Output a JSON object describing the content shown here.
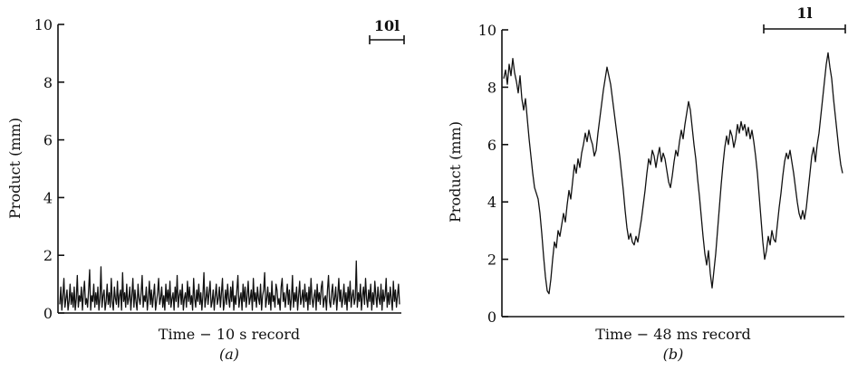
{
  "chart_data": [
    {
      "type": "line",
      "panel_label": "(a)",
      "xlabel": "Time − 10 s record",
      "ylabel": "Product (mm)",
      "ylim": [
        0,
        10
      ],
      "yticks": [
        0,
        2,
        4,
        6,
        8,
        10
      ],
      "x_ticks_shown": false,
      "grid": false,
      "scale_bar_label": "10l",
      "series": [
        {
          "values": [
            0.3,
            0.9,
            0.1,
            0.6,
            1.2,
            0.2,
            0.5,
            0.8,
            0.1,
            0.4,
            1.0,
            0.3,
            0.7,
            0.2,
            0.9,
            0.1,
            0.5,
            1.3,
            0.2,
            0.6,
            0.4,
            0.9,
            0.1,
            0.7,
            1.1,
            0.3,
            0.5,
            0.2,
            0.8,
            1.5,
            0.1,
            0.6,
            0.4,
            1.0,
            0.2,
            0.7,
            0.3,
            0.9,
            0.1,
            0.5,
            1.6,
            0.2,
            0.6,
            0.8,
            0.1,
            0.4,
            1.0,
            0.3,
            0.7,
            0.2,
            1.2,
            0.4,
            0.1,
            0.9,
            0.5,
            0.3,
            1.1,
            0.2,
            0.6,
            0.8,
            0.1,
            1.4,
            0.4,
            0.7,
            0.2,
            1.0,
            0.3,
            0.5,
            0.9,
            0.1,
            0.6,
            1.2,
            0.2,
            0.8,
            0.4,
            0.1,
            1.0,
            0.5,
            0.3,
            0.7,
            1.3,
            0.2,
            0.6,
            0.4,
            0.9,
            0.1,
            0.5,
            1.1,
            0.3,
            0.8,
            0.2,
            0.6,
            1.0,
            0.1,
            0.4,
            0.7,
            1.2,
            0.3,
            0.5,
            0.9,
            0.2,
            0.6,
            0.1,
            1.0,
            0.4,
            0.8,
            0.3,
            1.1,
            0.2,
            0.5,
            0.7,
            0.1,
            0.9,
            0.4,
            1.3,
            0.2,
            0.6,
            0.8,
            0.3,
            1.0,
            0.1,
            0.5,
            0.7,
            0.2,
            1.1,
            0.4,
            0.9,
            0.3,
            0.6,
            0.1,
            1.2,
            0.5,
            0.2,
            0.8,
            0.4,
            1.0,
            0.3,
            0.7,
            0.1,
            0.6,
            1.4,
            0.2,
            0.5,
            0.9,
            0.3,
            0.7,
            1.1,
            0.2,
            0.4,
            0.8,
            0.1,
            0.6,
            1.0,
            0.3,
            0.5,
            0.9,
            0.2,
            0.7,
            1.2,
            0.1,
            0.4,
            0.8,
            0.3,
            1.0,
            0.5,
            0.2,
            0.9,
            0.4,
            1.1,
            0.1,
            0.6,
            0.3,
            0.8,
            1.3,
            0.2,
            0.5,
            0.7,
            0.1,
            1.0,
            0.4,
            0.9,
            0.2,
            0.6,
            1.1,
            0.3,
            0.5,
            0.8,
            0.1,
            1.2,
            0.4,
            0.7,
            0.2,
            0.9,
            0.5,
            0.3,
            1.0,
            0.1,
            0.6,
            0.8,
            1.4,
            0.2,
            0.5,
            0.9,
            0.3,
            0.7,
            0.1,
            1.1,
            0.4,
            0.6,
            0.2,
            1.0,
            0.8,
            0.3,
            0.5,
            0.1,
            0.9,
            1.2,
            0.4,
            0.7,
            0.2,
            0.6,
            1.0,
            0.3,
            0.8,
            0.1,
            0.5,
            1.3,
            0.2,
            0.7,
            0.4,
            0.9,
            0.1,
            0.6,
            1.1,
            0.3,
            0.5,
            0.8,
            0.2,
            1.0,
            0.4,
            0.7,
            0.1,
            0.9,
            0.3,
            1.2,
            0.5,
            0.2,
            0.6,
            0.8,
            0.1,
            1.0,
            0.4,
            0.7,
            0.3,
            0.9,
            1.1,
            0.2,
            0.5,
            0.6,
            0.1,
            0.8,
            1.3,
            0.4,
            0.2,
            0.7,
            1.0,
            0.3,
            0.5,
            0.9,
            0.1,
            0.6,
            1.2,
            0.4,
            0.8,
            0.2,
            0.5,
            1.0,
            0.3,
            0.7,
            0.1,
            0.9,
            0.4,
            1.1,
            0.2,
            0.6,
            0.8,
            0.3,
            0.5,
            1.8,
            0.2,
            0.7,
            0.4,
            1.0,
            0.1,
            0.6,
            0.9,
            0.3,
            1.2,
            0.5,
            0.2,
            0.8,
            0.4,
            1.0,
            0.1,
            0.7,
            0.3,
            1.1,
            0.6,
            0.2,
            0.9,
            0.5,
            0.3,
            1.0,
            0.1,
            0.8,
            0.4,
            0.6,
            1.2,
            0.2,
            0.7,
            0.3,
            0.9,
            0.5,
            0.1,
            1.1,
            0.4,
            0.8,
            0.2,
            0.6,
            1.0,
            0.3
          ]
        }
      ]
    },
    {
      "type": "line",
      "panel_label": "(b)",
      "xlabel": "Time − 48 ms record",
      "ylabel": "Product (mm)",
      "ylim": [
        0,
        10
      ],
      "yticks": [
        0,
        2,
        4,
        6,
        8,
        10
      ],
      "x_ticks_shown": false,
      "grid": false,
      "scale_bar_label": "1l",
      "series": [
        {
          "values": [
            8.3,
            8.6,
            8.1,
            8.8,
            8.4,
            9.0,
            8.5,
            8.2,
            7.8,
            8.4,
            7.6,
            7.2,
            7.6,
            6.9,
            6.2,
            5.6,
            5.0,
            4.5,
            4.3,
            4.1,
            3.6,
            2.9,
            2.1,
            1.4,
            0.9,
            0.8,
            1.3,
            2.0,
            2.6,
            2.4,
            3.0,
            2.8,
            3.2,
            3.6,
            3.3,
            3.9,
            4.4,
            4.1,
            4.7,
            5.3,
            5.0,
            5.5,
            5.2,
            5.7,
            6.0,
            6.4,
            6.1,
            6.5,
            6.2,
            6.0,
            5.6,
            5.8,
            6.4,
            6.9,
            7.4,
            7.9,
            8.3,
            8.7,
            8.4,
            8.1,
            7.6,
            7.1,
            6.6,
            6.1,
            5.6,
            5.0,
            4.4,
            3.7,
            3.1,
            2.7,
            2.9,
            2.6,
            2.5,
            2.8,
            2.6,
            3.0,
            3.4,
            3.9,
            4.4,
            5.0,
            5.5,
            5.3,
            5.8,
            5.6,
            5.2,
            5.6,
            5.9,
            5.4,
            5.7,
            5.5,
            5.1,
            4.7,
            4.5,
            4.9,
            5.4,
            5.8,
            5.6,
            6.1,
            6.5,
            6.2,
            6.7,
            7.1,
            7.5,
            7.2,
            6.6,
            6.0,
            5.5,
            4.8,
            4.2,
            3.5,
            2.8,
            2.2,
            1.8,
            2.3,
            1.5,
            1.0,
            1.6,
            2.2,
            3.0,
            3.8,
            4.6,
            5.3,
            5.9,
            6.3,
            6.0,
            6.5,
            6.3,
            5.9,
            6.2,
            6.7,
            6.4,
            6.8,
            6.5,
            6.7,
            6.3,
            6.6,
            6.2,
            6.5,
            6.1,
            5.6,
            5.0,
            4.2,
            3.4,
            2.6,
            2.0,
            2.3,
            2.8,
            2.5,
            3.0,
            2.7,
            2.6,
            3.2,
            3.8,
            4.3,
            4.9,
            5.4,
            5.7,
            5.5,
            5.8,
            5.4,
            5.0,
            4.5,
            4.0,
            3.6,
            3.4,
            3.7,
            3.4,
            3.8,
            4.4,
            5.0,
            5.6,
            5.9,
            5.4,
            6.0,
            6.4,
            7.0,
            7.6,
            8.2,
            8.8,
            9.2,
            8.7,
            8.3,
            7.6,
            7.0,
            6.4,
            5.8,
            5.3,
            5.0
          ]
        }
      ]
    }
  ]
}
